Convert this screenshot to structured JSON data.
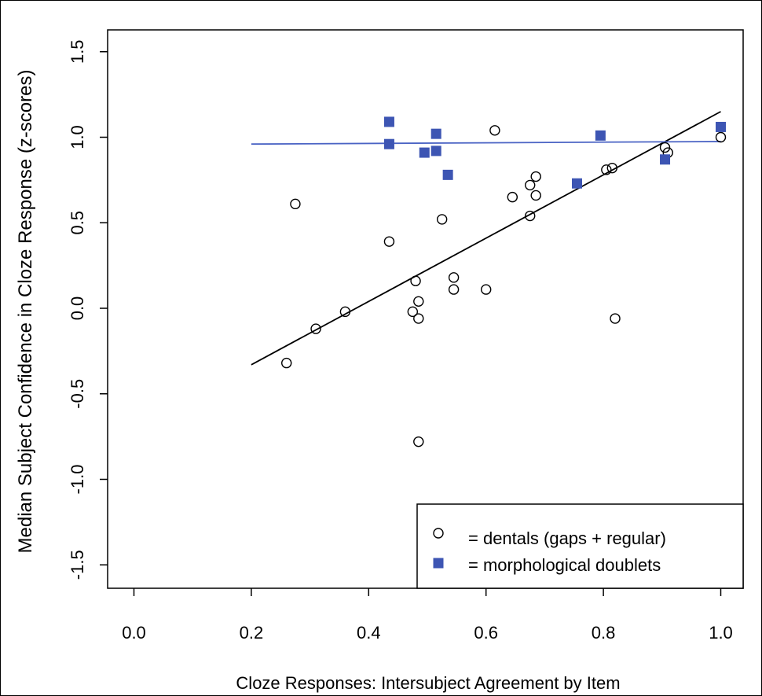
{
  "chart_data": {
    "type": "scatter",
    "xlabel": "Cloze Responses: Intersubject Agreement by Item",
    "ylabel": "Median Subject Confidence in Cloze Response (z-scores)",
    "xlim": [
      0.0,
      1.0
    ],
    "ylim": [
      -1.6,
      1.6
    ],
    "x_ticks": [
      "0.0",
      "0.2",
      "0.4",
      "0.6",
      "0.8",
      "1.0"
    ],
    "y_ticks": [
      "-1.5",
      "-1.0",
      "-0.5",
      "0.0",
      "0.5",
      "1.0",
      "1.5"
    ],
    "grid": false,
    "legend_position": "bottom-right",
    "series": [
      {
        "name": "= dentals (gaps + regular)",
        "marker": "open-circle",
        "color": "#000000",
        "points": [
          [
            0.26,
            -0.32
          ],
          [
            0.275,
            0.61
          ],
          [
            0.31,
            -0.12
          ],
          [
            0.36,
            -0.02
          ],
          [
            0.435,
            0.39
          ],
          [
            0.475,
            -0.02
          ],
          [
            0.48,
            0.16
          ],
          [
            0.485,
            0.04
          ],
          [
            0.485,
            -0.06
          ],
          [
            0.485,
            -0.78
          ],
          [
            0.525,
            0.52
          ],
          [
            0.545,
            0.11
          ],
          [
            0.545,
            0.18
          ],
          [
            0.6,
            0.11
          ],
          [
            0.615,
            1.04
          ],
          [
            0.645,
            0.65
          ],
          [
            0.675,
            0.72
          ],
          [
            0.675,
            0.54
          ],
          [
            0.685,
            0.77
          ],
          [
            0.685,
            0.66
          ],
          [
            0.805,
            0.81
          ],
          [
            0.815,
            0.82
          ],
          [
            0.82,
            -0.06
          ],
          [
            0.905,
            0.94
          ],
          [
            0.91,
            0.91
          ],
          [
            1.0,
            1.0
          ]
        ],
        "fit_line": {
          "x": [
            0.2,
            1.0
          ],
          "y": [
            -0.33,
            1.15
          ],
          "color": "#000000"
        }
      },
      {
        "name": "= morphological doublets",
        "marker": "filled-square",
        "color": "#3d55b3",
        "points": [
          [
            0.435,
            1.09
          ],
          [
            0.435,
            0.96
          ],
          [
            0.495,
            0.91
          ],
          [
            0.515,
            1.02
          ],
          [
            0.515,
            0.92
          ],
          [
            0.535,
            0.78
          ],
          [
            0.755,
            0.73
          ],
          [
            0.795,
            1.01
          ],
          [
            0.905,
            0.87
          ],
          [
            1.0,
            1.06
          ]
        ],
        "fit_line": {
          "x": [
            0.2,
            1.0
          ],
          "y": [
            0.96,
            0.975
          ],
          "color": "#4a63c4"
        }
      }
    ]
  }
}
